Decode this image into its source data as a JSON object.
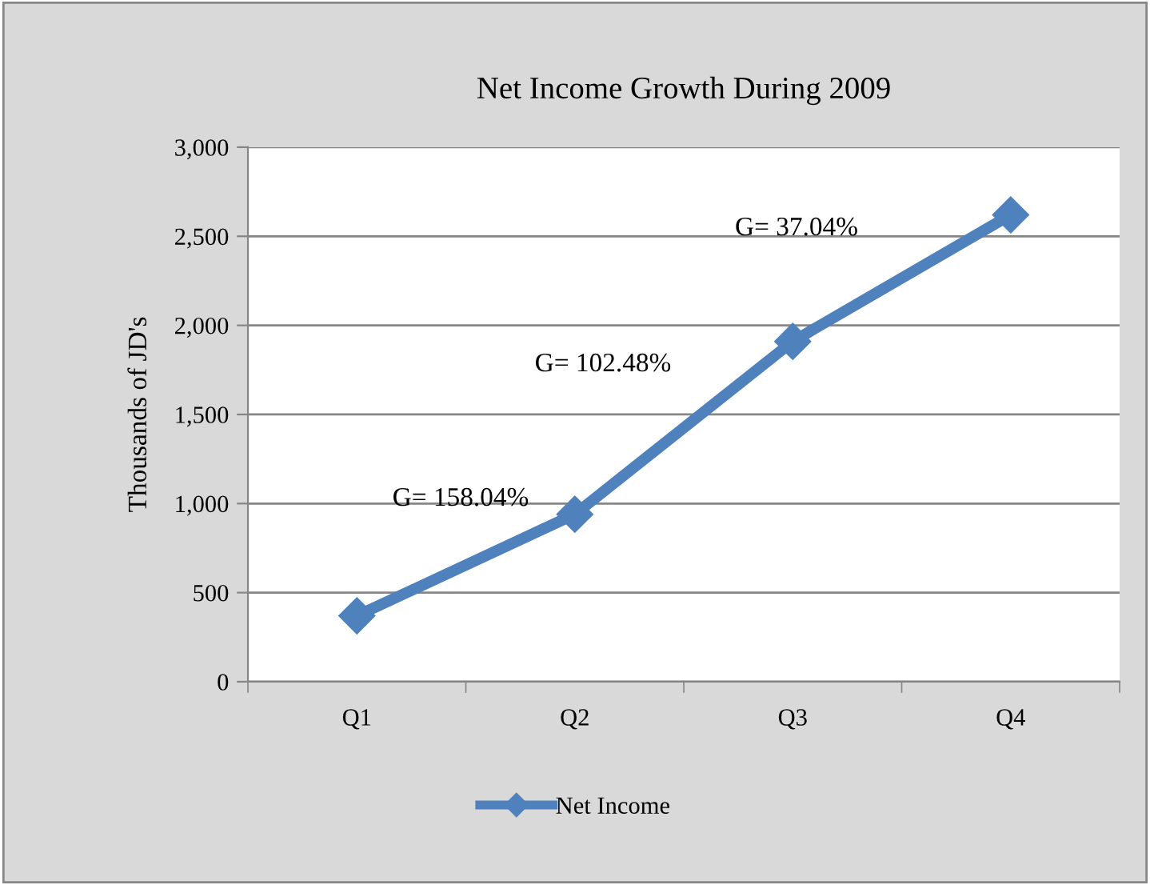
{
  "chart_data": {
    "type": "line",
    "title": "Net Income Growth During 2009",
    "ylabel": "Thousands of JD's",
    "categories": [
      "Q1",
      "Q2",
      "Q3",
      "Q4"
    ],
    "series": [
      {
        "name": "Net Income",
        "color": "#4f81bd",
        "values": [
          370,
          940,
          1910,
          2620
        ]
      }
    ],
    "ylim": [
      0,
      3000
    ],
    "yticks": [
      0,
      {
        "value": 500,
        "label": "500"
      },
      {
        "value": 1000,
        "label": "1,000"
      },
      {
        "value": 1500,
        "label": "1,500"
      },
      {
        "value": 2000,
        "label": "2,000"
      },
      {
        "value": 2500,
        "label": "2,500"
      },
      {
        "value": 3000,
        "label": "3,000"
      }
    ],
    "annotations": [
      "G= 158.04%",
      "G= 102.48%",
      "G= 37.04%"
    ],
    "grid": "y",
    "legend": "bottom",
    "marker": "diamond",
    "line_style": "solid"
  }
}
